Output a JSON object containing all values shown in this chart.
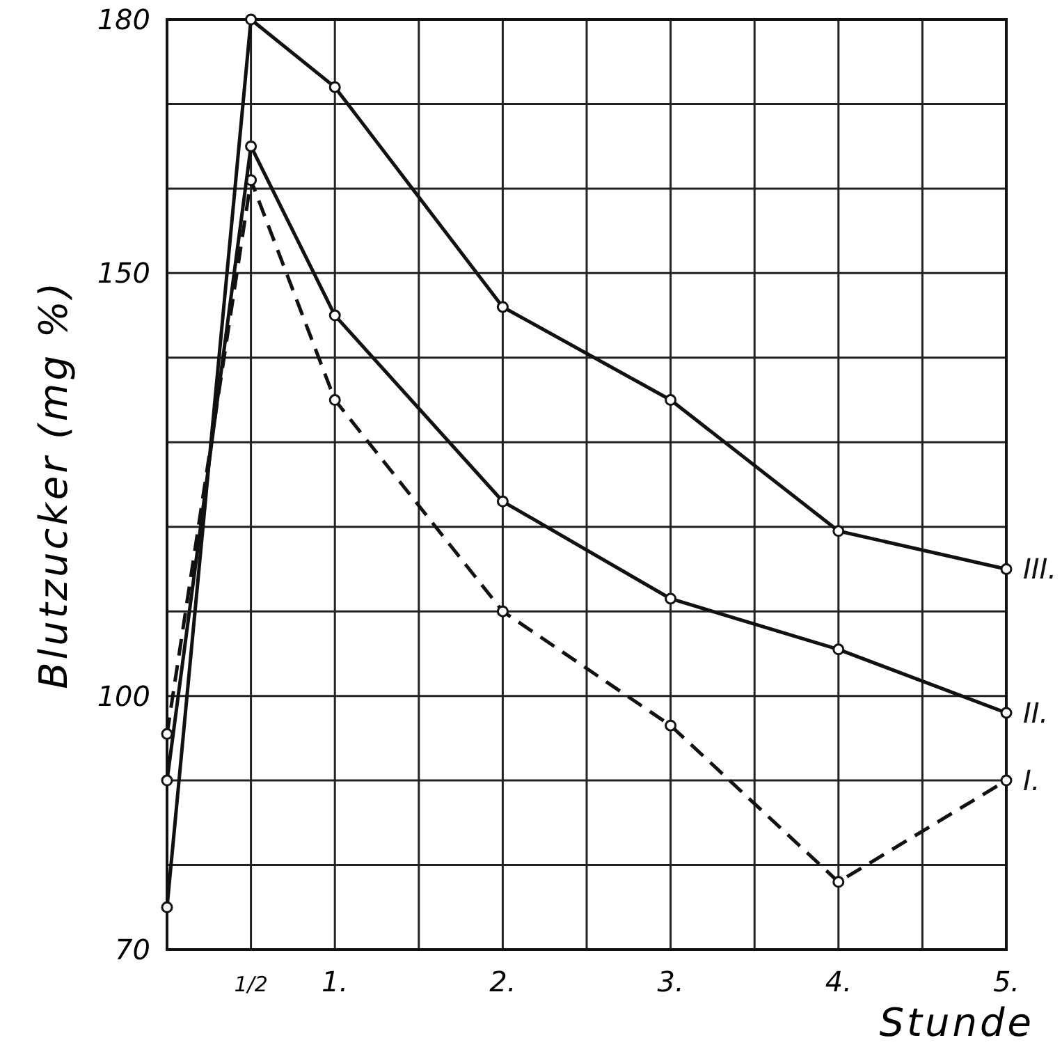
{
  "chart_data": {
    "type": "line",
    "xlabel": "Stunde",
    "ylabel": "Blutzucker (mg %)",
    "x": [
      0,
      0.5,
      1,
      2,
      3,
      4,
      5
    ],
    "series": [
      {
        "name": "I.",
        "color": "#111111",
        "line_style": "dashed",
        "values": [
          95.5,
          161,
          135,
          110,
          96.5,
          78,
          90
        ]
      },
      {
        "name": "II.",
        "color": "#111111",
        "line_style": "solid",
        "values": [
          90,
          165,
          145,
          123,
          111.5,
          105.5,
          98
        ]
      },
      {
        "name": "III.",
        "color": "#111111",
        "line_style": "solid",
        "values": [
          75,
          180,
          172,
          146,
          135,
          119.5,
          115
        ]
      }
    ],
    "xlim": [
      0,
      5
    ],
    "xticks": [
      {
        "value": 0,
        "label": null
      },
      {
        "value": 0.5,
        "label": "1/2"
      },
      {
        "value": 1,
        "label": "1."
      },
      {
        "value": 1.5,
        "label": null
      },
      {
        "value": 2,
        "label": "2."
      },
      {
        "value": 2.5,
        "label": null
      },
      {
        "value": 3,
        "label": "3."
      },
      {
        "value": 3.5,
        "label": null
      },
      {
        "value": 4,
        "label": "4."
      },
      {
        "value": 4.5,
        "label": null
      },
      {
        "value": 5,
        "label": "5."
      }
    ],
    "ylim": [
      70,
      180
    ],
    "yticks": [
      70,
      {
        "value": 80,
        "label": null
      },
      {
        "value": 90,
        "label": null
      },
      100,
      {
        "value": 110,
        "label": null
      },
      {
        "value": 120,
        "label": null
      },
      {
        "value": 130,
        "label": null
      },
      {
        "value": 140,
        "label": null
      },
      150,
      {
        "value": 160,
        "label": null
      },
      {
        "value": 170,
        "label": null
      },
      180
    ],
    "grid": true,
    "marker": "circle"
  }
}
